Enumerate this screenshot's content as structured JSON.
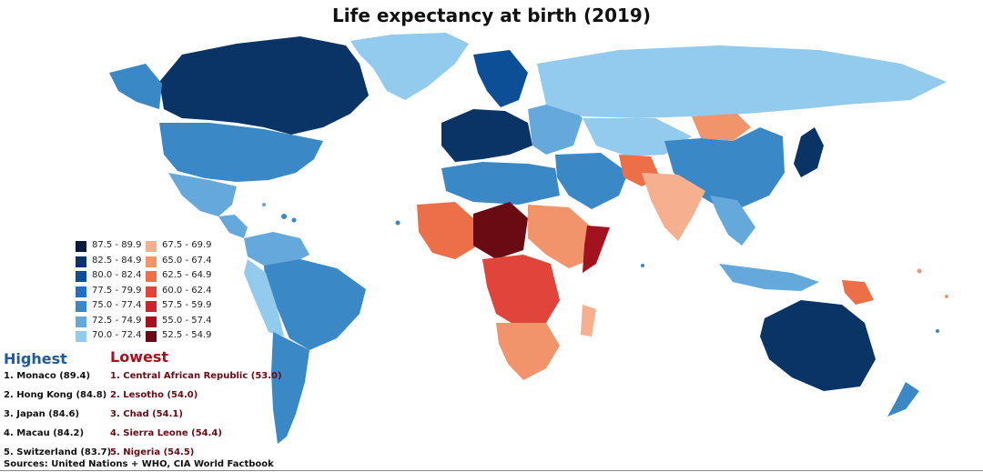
{
  "title": "Life expectancy at birth (2019)",
  "legend": {
    "left_column": [
      {
        "label": "87.5 - 89.9",
        "color": "#08193f"
      },
      {
        "label": "82.5 - 84.9",
        "color": "#0b3466"
      },
      {
        "label": "80.0 - 82.4",
        "color": "#0d4f97"
      },
      {
        "label": "77.5 - 79.9",
        "color": "#2170c3"
      },
      {
        "label": "75.0 - 77.4",
        "color": "#3a88c6"
      },
      {
        "label": "72.5 - 74.9",
        "color": "#64a8dc"
      },
      {
        "label": "70.0 - 72.4",
        "color": "#92cbee"
      }
    ],
    "right_column": [
      {
        "label": "67.5 - 69.9",
        "color": "#f6b08f"
      },
      {
        "label": "65.0 - 67.4",
        "color": "#f2946b"
      },
      {
        "label": "62.5 - 64.9",
        "color": "#ec6f47"
      },
      {
        "label": "60.0 - 62.4",
        "color": "#e1443a"
      },
      {
        "label": "57.5 - 59.9",
        "color": "#cc2430"
      },
      {
        "label": "55.0 - 57.4",
        "color": "#a3131f"
      },
      {
        "label": "52.5 - 54.9",
        "color": "#6a0a12"
      }
    ]
  },
  "highest": {
    "heading": "Highest",
    "color": "#1f5a9e",
    "items": [
      "1. Monaco (89.4)",
      "2. Hong Kong (84.8)",
      "3. Japan (84.6)",
      "4. Macau (84.2)",
      "5. Switzerland (83.7)"
    ]
  },
  "lowest": {
    "heading": "Lowest",
    "color": "#a3131f",
    "item_color": "#6a0a12",
    "items": [
      "1. Central African Republic (53.0)",
      "2. Lesotho (54.0)",
      "3. Chad (54.1)",
      "4. Sierra Leone (54.4)",
      "5. Nigeria (54.5)"
    ]
  },
  "source": "Sources: United Nations + WHO, CIA World Factbook"
}
